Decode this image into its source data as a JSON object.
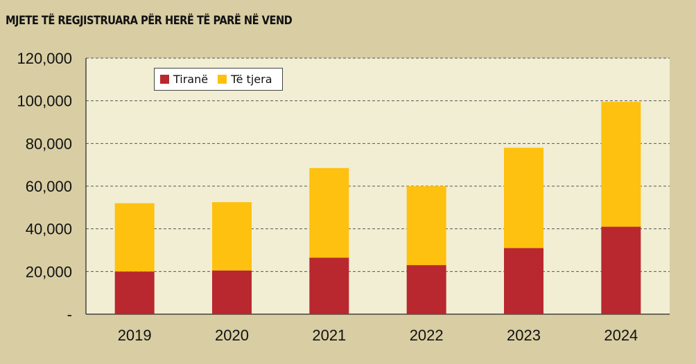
{
  "title": "MJETE TË REGJISTRUARA PËR HERË TË PARË NË VEND",
  "colors": {
    "plot_background": "#f1eed3",
    "page_background": "#d8cda3",
    "tirane": "#b9282e",
    "te_tjera": "#fec10f",
    "grid": "#555555"
  },
  "legend": {
    "tirane_label": "Tiranë",
    "te_tjera_label": "Të tjera"
  },
  "chart_data": {
    "type": "bar",
    "stacked": true,
    "categories": [
      "2019",
      "2020",
      "2021",
      "2022",
      "2023",
      "2024"
    ],
    "series": [
      {
        "name": "Tiranë",
        "values": [
          20000,
          20500,
          26500,
          23000,
          31000,
          41000
        ]
      },
      {
        "name": "Të tjera",
        "values": [
          32000,
          32000,
          42000,
          37000,
          47000,
          58500
        ]
      }
    ],
    "ylim": [
      0,
      120000
    ],
    "y_ticks": [
      0,
      20000,
      40000,
      60000,
      80000,
      100000,
      120000
    ],
    "y_tick_labels": [
      "-",
      "20,000",
      "40,000",
      "60,000",
      "80,000",
      "100,000",
      "120,000"
    ],
    "grid": true,
    "legend_position": "top-left"
  }
}
